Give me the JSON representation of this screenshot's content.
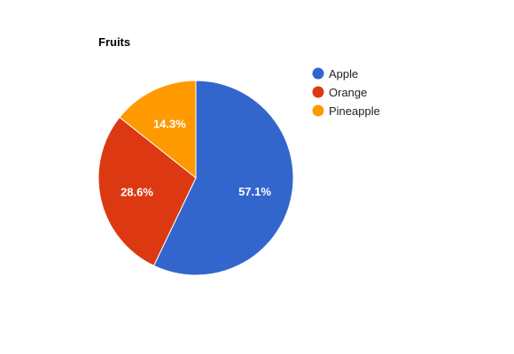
{
  "chart_data": {
    "type": "pie",
    "title": "Fruits",
    "legend_position": "right",
    "slices": [
      {
        "label": "Apple",
        "value": 57.1,
        "value_label": "57.1%",
        "color": "#3366cc"
      },
      {
        "label": "Orange",
        "value": 28.6,
        "value_label": "28.6%",
        "color": "#dc3912"
      },
      {
        "label": "Pineapple",
        "value": 14.3,
        "value_label": "14.3%",
        "color": "#ff9900"
      }
    ]
  }
}
